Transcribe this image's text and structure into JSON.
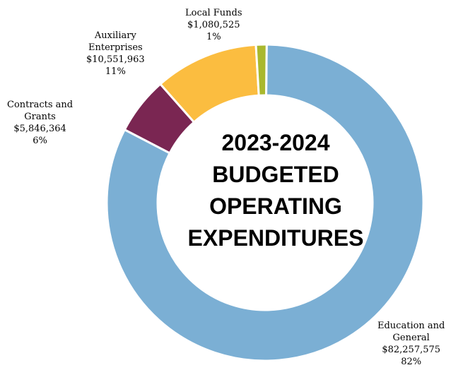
{
  "chart_data": {
    "type": "donut",
    "title_lines": [
      "2023-2024",
      "BUDGETED",
      "OPERATING",
      "EXPENDITURES"
    ],
    "slices": [
      {
        "name_lines": [
          "Education and",
          "General"
        ],
        "value": 82257575,
        "value_label": "$82,257,575",
        "percent_label": "82%",
        "color": "#7bafd4"
      },
      {
        "name_lines": [
          "Contracts and",
          "Grants"
        ],
        "value": 5846364,
        "value_label": "$5,846,364",
        "percent_label": "6%",
        "color": "#7a2652"
      },
      {
        "name_lines": [
          "Auxiliary",
          "Enterprises"
        ],
        "value": 10551963,
        "value_label": "$10,551,963",
        "percent_label": "11%",
        "color": "#fbbd40"
      },
      {
        "name_lines": [
          "Local Funds"
        ],
        "value": 1080525,
        "value_label": "$1,080,525",
        "percent_label": "1%",
        "color": "#a9b82e"
      }
    ]
  }
}
